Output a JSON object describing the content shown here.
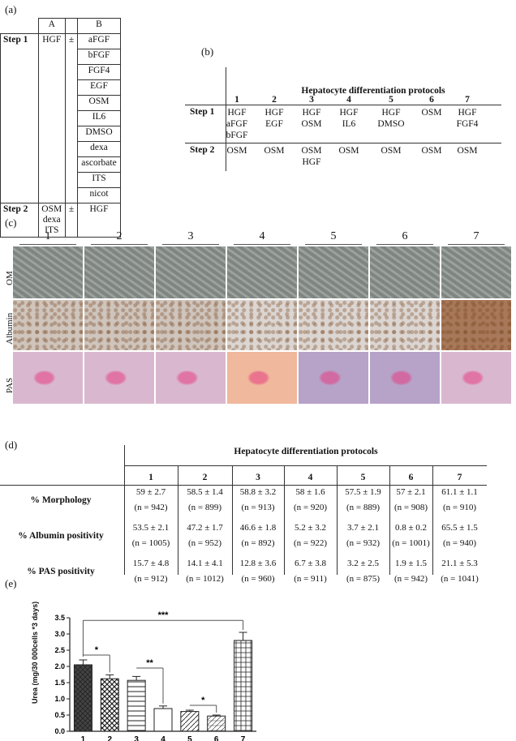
{
  "panel_labels": {
    "a": "(a)",
    "b": "(b)",
    "c": "(c)",
    "d": "(d)",
    "e": "(e)"
  },
  "panel_a": {
    "col_a": "A",
    "col_b": "B",
    "pm": "±",
    "step1": "Step 1",
    "step1_a": "HGF",
    "step1_b": [
      "aFGF",
      "bFGF",
      "FGF4",
      "EGF",
      "OSM",
      "IL6",
      "DMSO",
      "dexa",
      "ascorbate",
      "ITS",
      "nicot"
    ],
    "step2": "Step 2",
    "step2_a": [
      "OSM",
      "dexa",
      "ITS"
    ],
    "step2_b": "HGF"
  },
  "panel_b": {
    "title": "Hepatocyte differentiation protocols",
    "protocols": [
      "1",
      "2",
      "3",
      "4",
      "5",
      "6",
      "7"
    ],
    "step1_label": "Step 1",
    "step2_label": "Step 2",
    "step1": [
      [
        "HGF",
        "aFGF",
        "bFGF"
      ],
      [
        "HGF",
        "EGF"
      ],
      [
        "HGF",
        "OSM"
      ],
      [
        "HGF",
        "IL6"
      ],
      [
        "HGF",
        "DMSO"
      ],
      [
        "OSM"
      ],
      [
        "HGF",
        "FGF4"
      ]
    ],
    "step2": [
      [
        "OSM"
      ],
      [
        "OSM"
      ],
      [
        "OSM",
        "HGF"
      ],
      [
        "OSM"
      ],
      [
        "OSM"
      ],
      [
        "OSM"
      ],
      [
        "OSM"
      ]
    ]
  },
  "panel_c": {
    "columns": [
      "1",
      "2",
      "3",
      "4",
      "5",
      "6",
      "7"
    ],
    "rows": [
      "OM",
      "Albumin",
      "PAS"
    ],
    "colors": {
      "om": "#8d9490",
      "albumin": "#cfc5bd",
      "pas": "#d9b8cf"
    }
  },
  "panel_d": {
    "title": "Hepatocyte differentiation protocols",
    "protocols": [
      "1",
      "2",
      "3",
      "4",
      "5",
      "6",
      "7"
    ],
    "rows": [
      {
        "label": "% Morphology",
        "values": [
          "59 ± 2.7",
          "58.5 ± 1.4",
          "58.8 ± 3.2",
          "58 ± 1.6",
          "57.5 ± 1.9",
          "57 ± 2.1",
          "61.1 ± 1.1"
        ],
        "n": [
          "(n = 942)",
          "(n = 899)",
          "(n = 913)",
          "(n = 920)",
          "(n = 889)",
          "(n = 908)",
          "(n = 910)"
        ]
      },
      {
        "label": "% Albumin positivity",
        "values": [
          "53.5 ± 2.1",
          "47.2 ± 1.7",
          "46.6 ± 1.8",
          "5.2 ± 3.2",
          "3.7 ± 2.1",
          "0.8 ± 0.2",
          "65.5 ± 1.5"
        ],
        "n": [
          "(n = 1005)",
          "(n = 952)",
          "(n = 892)",
          "(n = 922)",
          "(n = 932)",
          "(n = 1001)",
          "(n = 940)"
        ]
      },
      {
        "label": "% PAS positivity",
        "values": [
          "15.7 ± 4.8",
          "14.1 ± 4.1",
          "12.8 ± 3.6",
          "6.7 ± 3.8",
          "3.2 ± 2.5",
          "1.9 ± 1.5",
          "21.1 ± 5.3"
        ],
        "n": [
          "(n = 912)",
          "(n = 1012)",
          "(n = 960)",
          "(n = 911)",
          "(n = 875)",
          "(n = 942)",
          "(n = 1041)"
        ]
      }
    ]
  },
  "chart_data": {
    "type": "bar",
    "categories": [
      "1",
      "2",
      "3",
      "4",
      "5",
      "6",
      "7"
    ],
    "values": [
      2.05,
      1.62,
      1.57,
      0.7,
      0.61,
      0.47,
      2.8
    ],
    "errors": [
      0.15,
      0.12,
      0.12,
      0.08,
      0.04,
      0.03,
      0.25
    ],
    "ylabel": "Urea (mg/30 000cells *3 days)",
    "ylim": [
      0,
      3.5
    ],
    "yticks": [
      "0.0",
      "0.5",
      "1.0",
      "1.5",
      "2.0",
      "2.5",
      "3.0",
      "3.5"
    ],
    "significance": [
      {
        "from": "1",
        "to": "2",
        "label": "*"
      },
      {
        "from": "3",
        "to": "4",
        "label": "**"
      },
      {
        "from": "5",
        "to": "6",
        "label": "*"
      },
      {
        "from": "1",
        "to": "7",
        "label": "***"
      }
    ]
  }
}
